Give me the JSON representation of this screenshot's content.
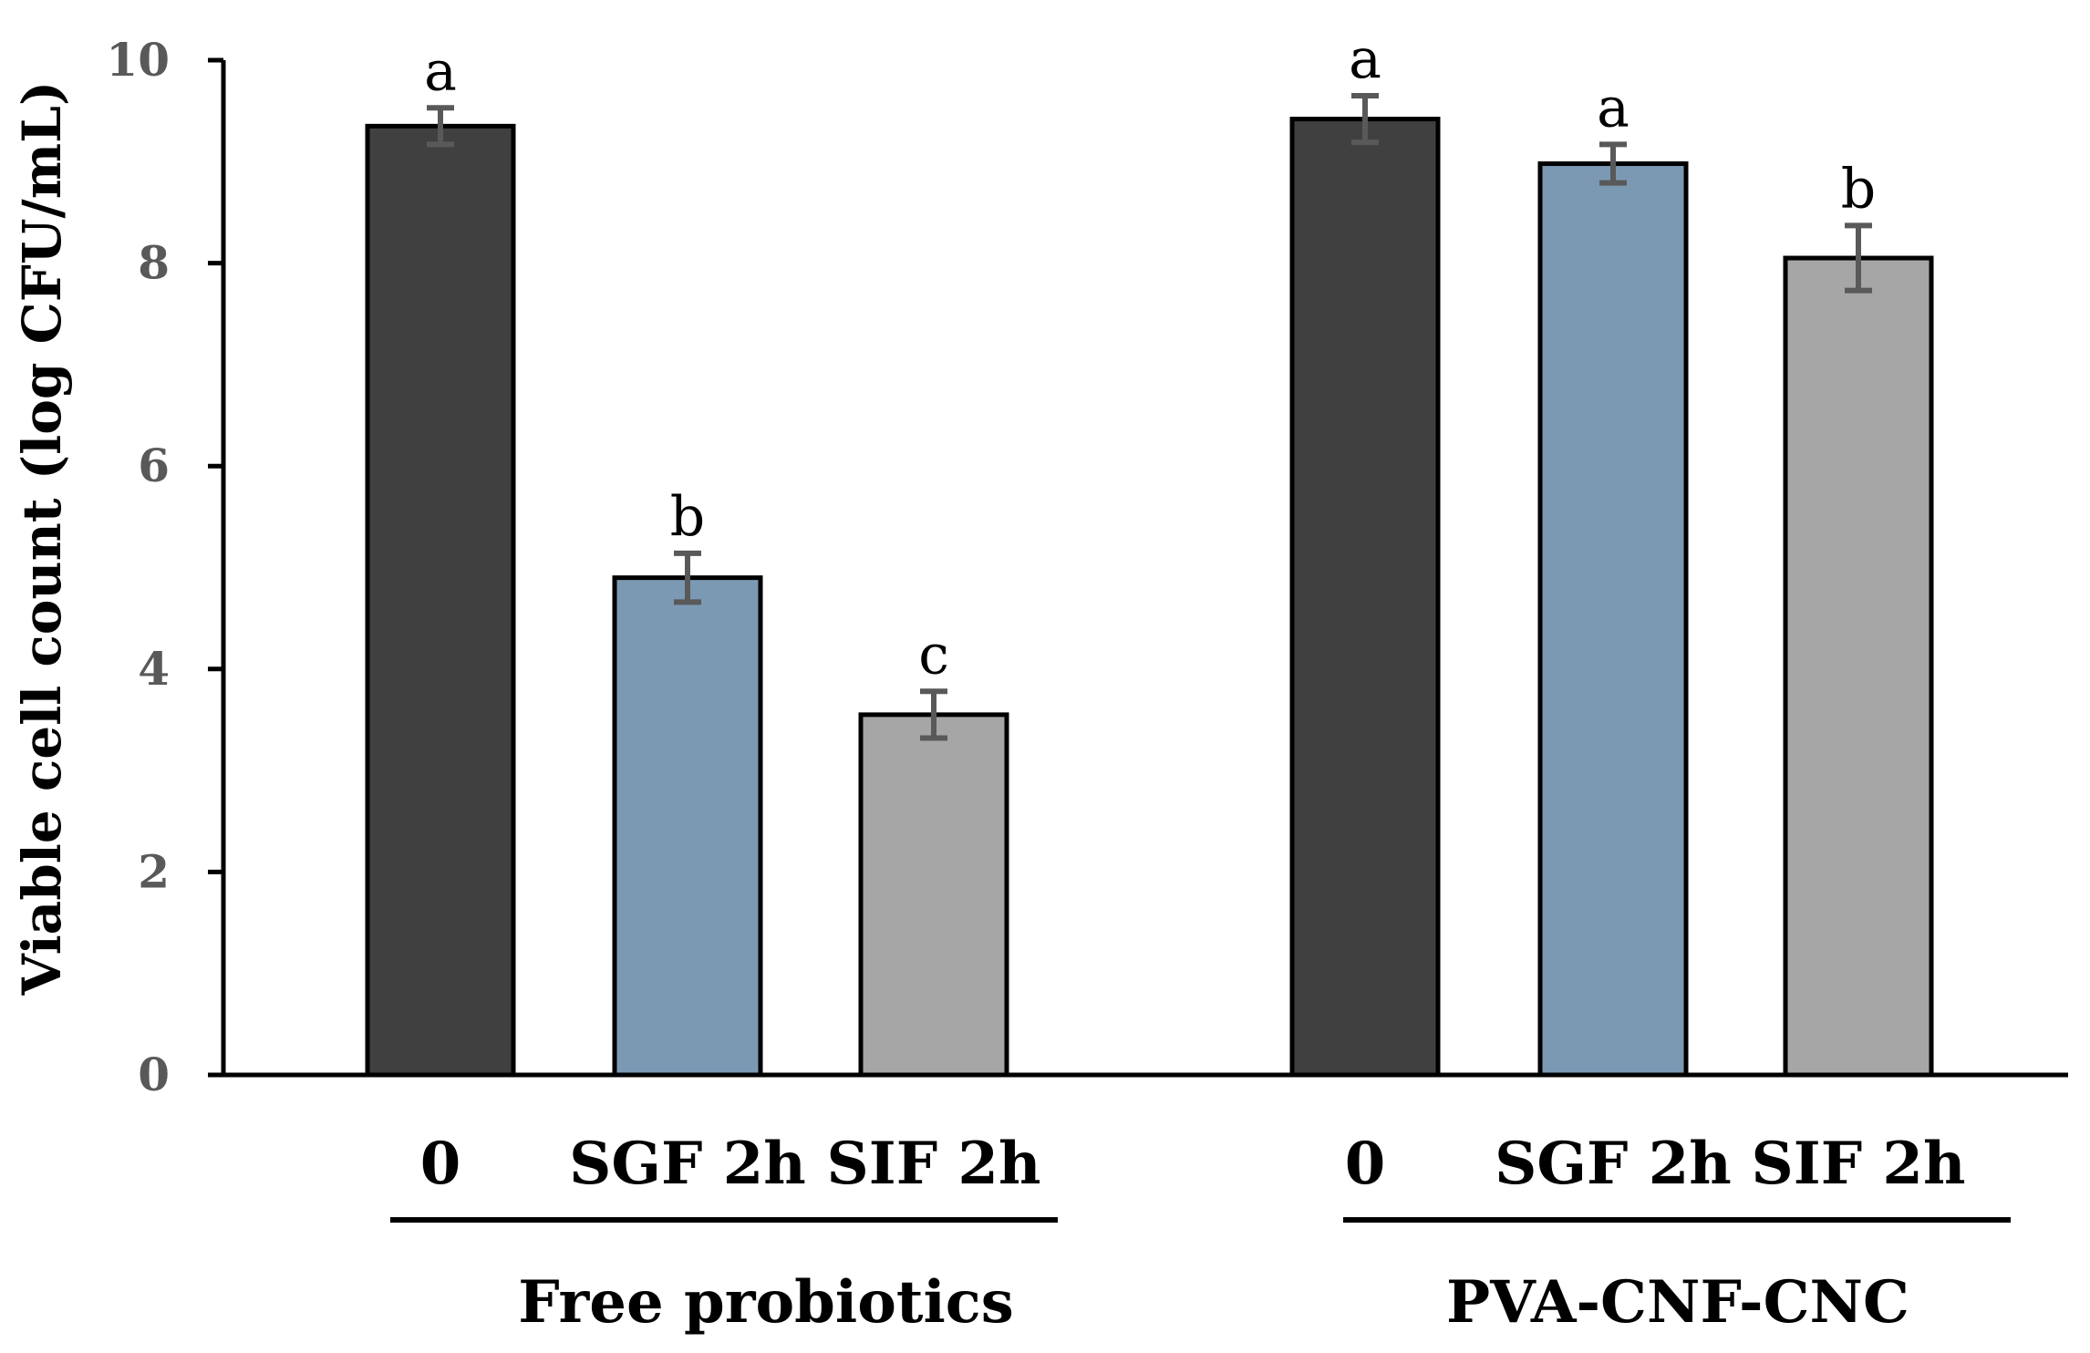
{
  "chart_data": {
    "type": "bar",
    "title": "",
    "xlabel": "",
    "ylabel": "Viable cell count (log CFU/mL)",
    "ylim": [
      0,
      10
    ],
    "yticks": [
      "0",
      "2",
      "4",
      "6",
      "8",
      "10"
    ],
    "grid": false,
    "groups": [
      {
        "name": "Free probiotics",
        "bars": [
          {
            "category": "0",
            "value": 9.35,
            "error": 0.18,
            "significance": "a",
            "color": "#404040"
          },
          {
            "category": "SGF 2h",
            "value": 4.9,
            "error": 0.24,
            "significance": "b",
            "color": "#7c99b4"
          },
          {
            "category": "SIF 2h",
            "value": 3.55,
            "error": 0.23,
            "significance": "c",
            "color": "#a6a6a6"
          }
        ]
      },
      {
        "name": "PVA-CNF-CNC",
        "bars": [
          {
            "category": "0",
            "value": 9.42,
            "error": 0.23,
            "significance": "a",
            "color": "#404040"
          },
          {
            "category": "SGF 2h",
            "value": 8.98,
            "error": 0.19,
            "significance": "a",
            "color": "#7c99b4"
          },
          {
            "category": "SIF 2h",
            "value": 8.05,
            "error": 0.32,
            "significance": "b",
            "color": "#a6a6a6"
          }
        ]
      }
    ]
  }
}
